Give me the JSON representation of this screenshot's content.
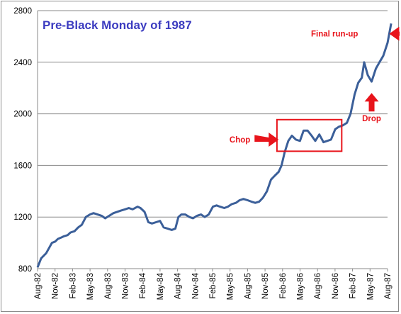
{
  "chart_data": {
    "type": "line",
    "title": "Pre-Black Monday of 1987",
    "xlabel": "",
    "ylabel": "",
    "ylim": [
      800,
      2800
    ],
    "y_ticks": [
      800,
      1200,
      1600,
      2000,
      2400,
      2800
    ],
    "x_ticks": [
      "Aug-82",
      "Nov-82",
      "Feb-83",
      "May-83",
      "Aug-83",
      "Nov-83",
      "Feb-84",
      "May-84",
      "Aug-84",
      "Nov-84",
      "Feb-85",
      "May-85",
      "Aug-85",
      "Nov-85",
      "Feb-86",
      "May-86",
      "Aug-86",
      "Nov-86",
      "Feb-87",
      "May-87",
      "Aug-87"
    ],
    "grid": true,
    "line_color": "#3b5f99",
    "series": [
      {
        "x": [
          "1982-08-01",
          "1982-08-20",
          "1982-09-15",
          "1982-10-15",
          "1982-11-01",
          "1982-11-15",
          "1982-12-01",
          "1982-12-15",
          "1983-01-05",
          "1983-01-20",
          "1983-02-10",
          "1983-03-01",
          "1983-03-20",
          "1983-04-10",
          "1983-05-01",
          "1983-05-20",
          "1983-06-10",
          "1983-07-01",
          "1983-07-20",
          "1983-08-10",
          "1983-09-01",
          "1983-09-20",
          "1983-10-10",
          "1983-11-01",
          "1983-11-20",
          "1983-12-10",
          "1984-01-05",
          "1984-01-20",
          "1984-02-10",
          "1984-03-01",
          "1984-03-20",
          "1984-04-10",
          "1984-05-01",
          "1984-05-20",
          "1984-06-10",
          "1984-07-01",
          "1984-07-20",
          "1984-08-05",
          "1984-08-20",
          "1984-09-10",
          "1984-10-01",
          "1984-10-20",
          "1984-11-10",
          "1984-12-01",
          "1984-12-20",
          "1985-01-10",
          "1985-02-01",
          "1985-02-20",
          "1985-03-10",
          "1985-04-01",
          "1985-04-20",
          "1985-05-10",
          "1985-06-01",
          "1985-06-20",
          "1985-07-10",
          "1985-08-01",
          "1985-08-20",
          "1985-09-10",
          "1985-10-01",
          "1985-10-20",
          "1985-11-10",
          "1985-12-01",
          "1985-12-20",
          "1986-01-10",
          "1986-01-25",
          "1986-02-10",
          "1986-03-01",
          "1986-03-20",
          "1986-04-10",
          "1986-05-01",
          "1986-05-20",
          "1986-06-10",
          "1986-07-01",
          "1986-07-20",
          "1986-08-10",
          "1986-09-01",
          "1986-09-20",
          "1986-10-10",
          "1986-11-01",
          "1986-11-20",
          "1986-12-10",
          "1987-01-01",
          "1987-01-20",
          "1987-02-10",
          "1987-03-01",
          "1987-03-20",
          "1987-04-01",
          "1987-04-20",
          "1987-05-10",
          "1987-06-01",
          "1987-06-20",
          "1987-07-10",
          "1987-08-01",
          "1987-08-20"
        ],
        "values": [
          810,
          880,
          920,
          1000,
          1010,
          1030,
          1040,
          1050,
          1060,
          1080,
          1090,
          1120,
          1140,
          1200,
          1220,
          1230,
          1220,
          1210,
          1190,
          1210,
          1230,
          1240,
          1250,
          1260,
          1270,
          1260,
          1280,
          1270,
          1240,
          1160,
          1150,
          1160,
          1170,
          1120,
          1110,
          1100,
          1110,
          1200,
          1220,
          1220,
          1200,
          1190,
          1210,
          1220,
          1200,
          1220,
          1280,
          1290,
          1280,
          1270,
          1280,
          1300,
          1310,
          1330,
          1340,
          1330,
          1320,
          1310,
          1320,
          1350,
          1400,
          1490,
          1520,
          1550,
          1600,
          1700,
          1790,
          1830,
          1800,
          1790,
          1870,
          1870,
          1830,
          1790,
          1840,
          1780,
          1790,
          1800,
          1880,
          1900,
          1910,
          1930,
          2000,
          2150,
          2240,
          2280,
          2400,
          2300,
          2250,
          2350,
          2400,
          2450,
          2550,
          2700
        ]
      }
    ],
    "annotations": [
      {
        "label": "Final run-up",
        "x": "1987-08-10",
        "y": 2610
      },
      {
        "label": "Drop",
        "x": "1987-05-10",
        "y": 2200
      },
      {
        "label": "Chop",
        "x": "1986-02-01",
        "y": 1800
      }
    ],
    "highlight_box": {
      "x0": "1986-01-01",
      "x1": "1986-12-05",
      "y0": 1710,
      "y1": 1955,
      "color": "#e8141b"
    }
  }
}
